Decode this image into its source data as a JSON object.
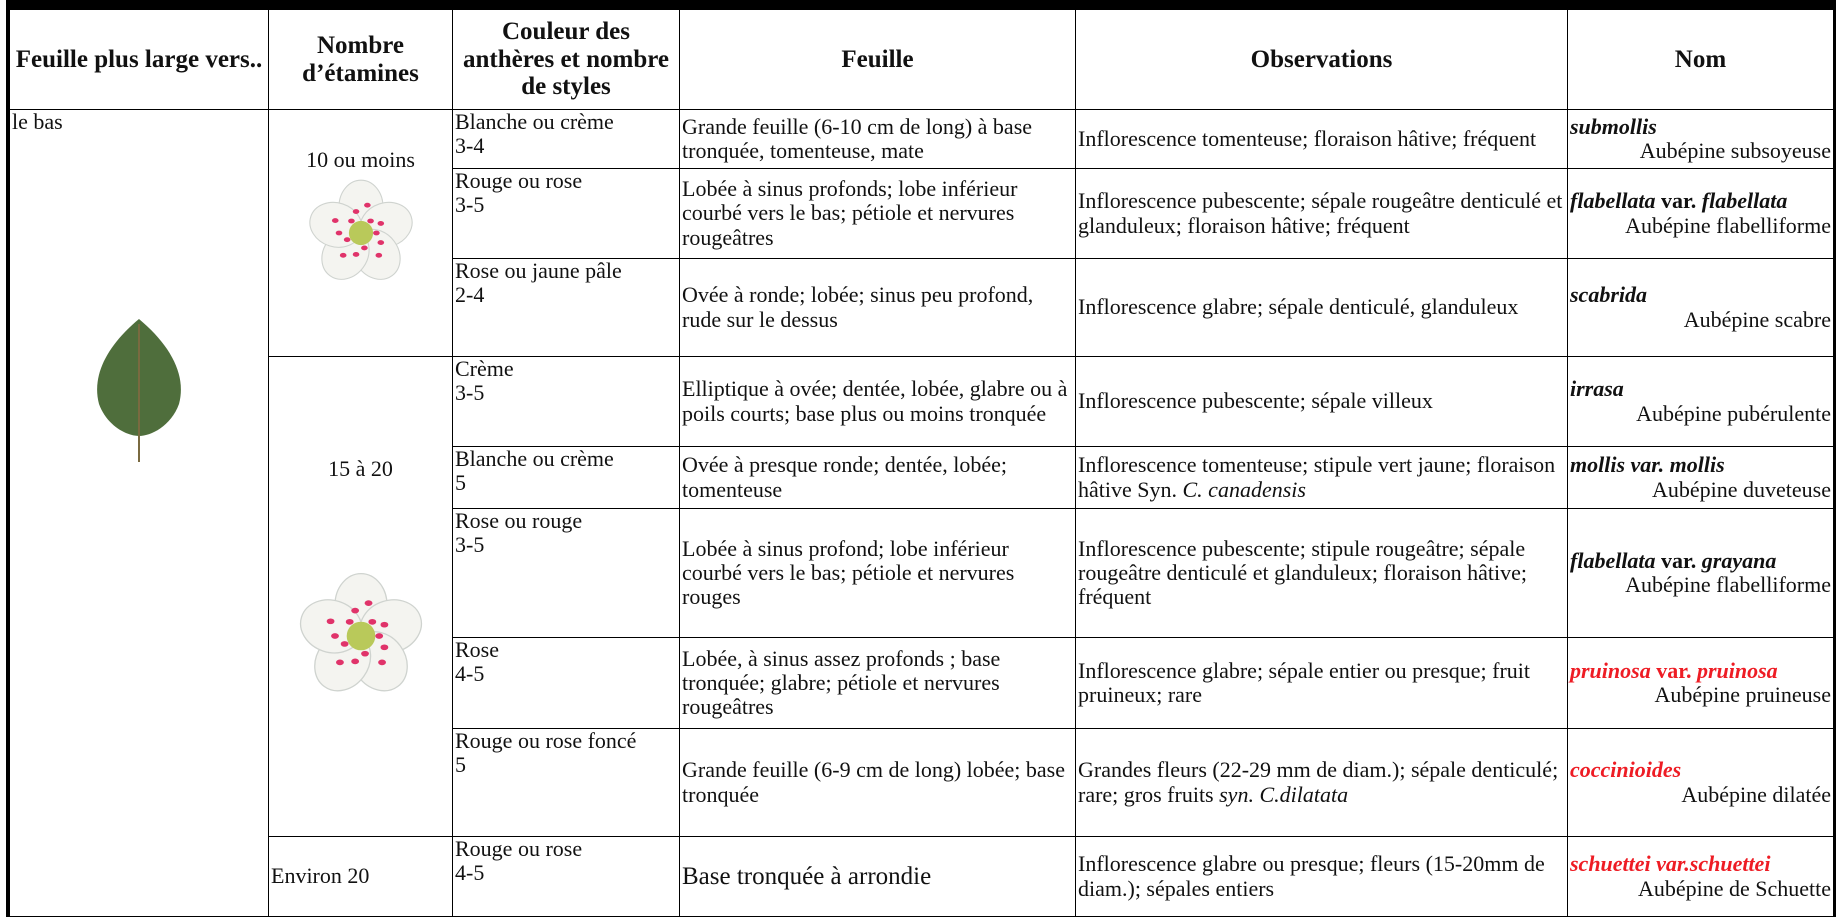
{
  "header": [
    "Feuille plus large vers..",
    "Nombre d’étamines",
    "Couleur des anthères et nombre de styles",
    "Feuille",
    "Observations",
    "Nom"
  ],
  "leaf_side": "le bas",
  "stamen_groups": [
    {
      "label": "10 ou moins",
      "rows": 3
    },
    {
      "label": "15 à 20",
      "rows": 5
    },
    {
      "label": "Environ 20",
      "rows": 1
    }
  ],
  "rows": [
    {
      "anthers": "Blanche ou crème",
      "styles": "3-4",
      "leaf": "Grande feuille (6-10 cm de long) à base tronquée, tomenteuse, mate",
      "observations": [
        {
          "text": "Inflorescence tomenteuse; floraison hâtive; fréquent"
        }
      ],
      "latin": [
        {
          "text": "submollis",
          "b": true,
          "i": true
        }
      ],
      "common": "Aubépine subsoyeuse"
    },
    {
      "anthers": "Rouge ou rose",
      "styles": "3-5",
      "leaf": "Lobée à sinus profonds; lobe inférieur courbé vers le bas; pétiole et nervures rougeâtres",
      "observations": [
        {
          "text": "Inflorescence pubescente; sépale rougeâtre denticulé et glanduleux; floraison hâtive; fréquent"
        }
      ],
      "latin": [
        {
          "text": "flabellata",
          "b": true,
          "i": true
        },
        {
          "text": " var. ",
          "b": true
        },
        {
          "text": "flabellata",
          "b": true,
          "i": true
        }
      ],
      "common": "Aubépine flabelliforme"
    },
    {
      "anthers": "Rose ou jaune pâle",
      "styles": "2-4",
      "leaf": "Ovée à ronde; lobée; sinus peu profond, rude sur le dessus",
      "observations": [
        {
          "text": "Inflorescence glabre; sépale denticulé, glanduleux"
        }
      ],
      "latin": [
        {
          "text": "scabrida",
          "b": true,
          "i": true
        }
      ],
      "common": "Aubépine scabre"
    },
    {
      "anthers": "Crème",
      "styles": "3-5",
      "leaf": "Elliptique à ovée; dentée, lobée, glabre ou à poils courts; base plus ou moins tronquée",
      "observations": [
        {
          "text": "Inflorescence pubescente; sépale villeux"
        }
      ],
      "latin": [
        {
          "text": "irrasa",
          "b": true,
          "i": true
        }
      ],
      "common": "Aubépine pubérulente"
    },
    {
      "anthers": "Blanche ou crème",
      "styles": "5",
      "leaf": "Ovée à presque ronde; dentée, lobée; tomenteuse",
      "observations": [
        {
          "text": "Inflorescence tomenteuse; stipule vert jaune; floraison hâtive Syn. "
        },
        {
          "text": "C. canadensis",
          "i": true
        }
      ],
      "latin": [
        {
          "text": "mollis var. mollis",
          "b": true,
          "i": true
        }
      ],
      "common": "Aubépine duveteuse"
    },
    {
      "anthers": "Rose ou rouge",
      "styles": "3-5",
      "leaf": "Lobée à sinus profond; lobe inférieur courbé vers le bas; pétiole et nervures rouges",
      "observations": [
        {
          "text": "Inflorescence pubescente; stipule rougeâtre; sépale rougeâtre denticulé et glanduleux; floraison hâtive; fréquent"
        }
      ],
      "latin": [
        {
          "text": "flabellata",
          "b": true,
          "i": true
        },
        {
          "text": " var. ",
          "b": true
        },
        {
          "text": "grayana",
          "b": true,
          "i": true
        }
      ],
      "common": "Aubépine flabelliforme"
    },
    {
      "anthers": "Rose",
      "styles": "4-5",
      "leaf": "Lobée, à sinus assez profonds ; base tronquée; glabre; pétiole et nervures rougeâtres",
      "observations": [
        {
          "text": "Inflorescence glabre; sépale entier ou presque; fruit pruineux; rare"
        }
      ],
      "latin": [
        {
          "text": "pruinosa",
          "b": true,
          "i": true,
          "color": "#ee1c24"
        },
        {
          "text": " var. ",
          "b": true,
          "color": "#ee1c24"
        },
        {
          "text": "pruinosa",
          "b": true,
          "i": true,
          "color": "#ee1c24"
        }
      ],
      "common": "Aubépine pruineuse"
    },
    {
      "anthers": "Rouge ou rose foncé",
      "styles": "5",
      "leaf": "Grande feuille (6-9 cm de long) lobée; base tronquée",
      "observations": [
        {
          "text": "Grandes fleurs (22-29 mm de diam.); sépale denticulé; rare; gros fruits "
        },
        {
          "text": "syn. C.dilatata",
          "i": true
        }
      ],
      "latin": [
        {
          "text": "coccinioides",
          "b": true,
          "i": true,
          "color": "#ee1c24"
        }
      ],
      "common": "Aubépine dilatée"
    },
    {
      "anthers": "Rouge ou rose",
      "styles": "4-5",
      "leaf": "Base tronquée à arrondie",
      "observations": [
        {
          "text": "Inflorescence glabre ou presque; fleurs (15-20mm de diam.); sépales entiers"
        }
      ],
      "latin": [
        {
          "text": "schuettei var.schuettei",
          "b": true,
          "i": true,
          "color": "#ee1c24"
        }
      ],
      "common": "Aubépine de Schuette"
    }
  ]
}
